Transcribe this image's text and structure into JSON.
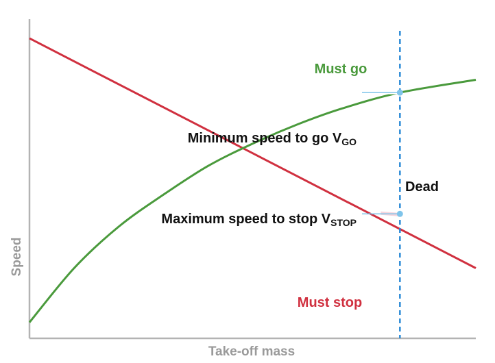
{
  "chart_data": {
    "type": "line",
    "xlabel": "Take-off mass",
    "ylabel": "Speed",
    "xlim": [
      0,
      100
    ],
    "ylim": [
      0,
      100
    ],
    "grid": false,
    "series": [
      {
        "color": "#d0303f",
        "x": [
          0,
          100
        ],
        "y": [
          94,
          22
        ]
      },
      {
        "color": "#4a9a3c",
        "x": [
          0,
          10,
          20,
          30,
          40,
          50,
          60,
          70,
          83,
          100
        ],
        "y": [
          5,
          22,
          35,
          45,
          54,
          61,
          67,
          72,
          77,
          81
        ]
      }
    ],
    "reference_line": {
      "axis": "x",
      "value": 83,
      "color": "#2a8ad6",
      "style": "dashed"
    },
    "annotations": [
      {
        "id": "vgo",
        "main": "Minimum speed to go V",
        "sub": "GO",
        "x": 83,
        "y": 77
      },
      {
        "id": "vstop",
        "main": "Maximum speed to stop V",
        "sub": "STOP",
        "x": 83,
        "y": 39
      }
    ],
    "regions": {
      "must_go": {
        "text": "Must go",
        "color": "#4a9a3c"
      },
      "must_stop": {
        "text": "Must stop",
        "color": "#d0303f"
      },
      "dead": {
        "text": "Dead",
        "color": "#111111"
      }
    }
  }
}
